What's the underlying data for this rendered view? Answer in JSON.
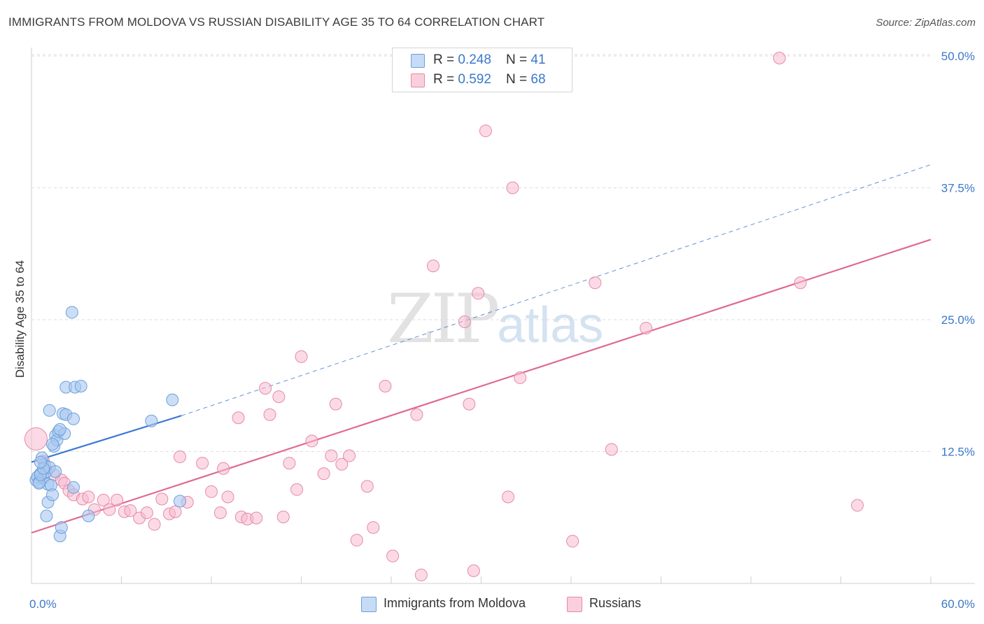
{
  "title": "IMMIGRANTS FROM MOLDOVA VS RUSSIAN DISABILITY AGE 35 TO 64 CORRELATION CHART",
  "source": "Source: ZipAtlas.com",
  "watermark": {
    "zip": "ZIP",
    "atlas": "atlas"
  },
  "legend": {
    "series1": {
      "r_label": "R = ",
      "r_value": "0.248",
      "n_label": "N = ",
      "n_value": "41"
    },
    "series2": {
      "r_label": "R = ",
      "r_value": "0.592",
      "n_label": "N = ",
      "n_value": "68"
    }
  },
  "bottom_legend": {
    "series1": "Immigrants from Moldova",
    "series2": "Russians"
  },
  "chart_data": {
    "type": "scatter",
    "title": "IMMIGRANTS FROM MOLDOVA VS RUSSIAN DISABILITY AGE 35 TO 64 CORRELATION CHART",
    "xlabel": "",
    "ylabel": "Disability Age 35 to 64",
    "xlim": [
      0,
      60
    ],
    "ylim": [
      0,
      50
    ],
    "x_tick_labels": [
      "0.0%",
      "60.0%"
    ],
    "y_tick_labels": [
      {
        "value": 12.5,
        "label": "12.5%"
      },
      {
        "value": 25.0,
        "label": "25.0%"
      },
      {
        "value": 37.5,
        "label": "37.5%"
      },
      {
        "value": 50.0,
        "label": "50.0%"
      }
    ],
    "grid": true,
    "legend_position": "top-center",
    "colors": {
      "series1_fill": "#a8c8f0",
      "series1_stroke": "#6f9fdc",
      "series1_line": "#3a78d4",
      "series2_fill": "#f7bcd0",
      "series2_stroke": "#e58aa8",
      "series2_line": "#e06a94",
      "tick_label": "#3a78c9"
    },
    "series": [
      {
        "name": "Immigrants from Moldova",
        "R": 0.248,
        "N": 41,
        "trend": {
          "solid": [
            [
              0,
              11.5
            ],
            [
              10,
              15.9
            ]
          ],
          "dashed": [
            [
              10,
              15.9
            ],
            [
              60,
              39.7
            ]
          ]
        },
        "points": [
          [
            0.3,
            9.8
          ],
          [
            0.4,
            10.1
          ],
          [
            0.5,
            9.6
          ],
          [
            0.6,
            10.4
          ],
          [
            0.8,
            10.0
          ],
          [
            0.9,
            11.2
          ],
          [
            0.7,
            11.9
          ],
          [
            1.0,
            10.6
          ],
          [
            1.1,
            9.4
          ],
          [
            1.2,
            11.0
          ],
          [
            1.0,
            6.4
          ],
          [
            1.1,
            7.7
          ],
          [
            1.3,
            9.3
          ],
          [
            1.4,
            8.4
          ],
          [
            1.5,
            13.0
          ],
          [
            1.6,
            14.0
          ],
          [
            1.7,
            13.6
          ],
          [
            1.8,
            14.4
          ],
          [
            1.2,
            16.4
          ],
          [
            1.9,
            4.5
          ],
          [
            2.0,
            5.3
          ],
          [
            2.1,
            16.1
          ],
          [
            2.2,
            14.2
          ],
          [
            2.3,
            16.0
          ],
          [
            2.3,
            18.6
          ],
          [
            2.8,
            15.6
          ],
          [
            2.9,
            18.6
          ],
          [
            3.3,
            18.7
          ],
          [
            1.6,
            10.6
          ],
          [
            2.8,
            9.1
          ],
          [
            2.7,
            25.7
          ],
          [
            3.8,
            6.4
          ],
          [
            8.0,
            15.4
          ],
          [
            9.4,
            17.4
          ],
          [
            9.9,
            7.8
          ],
          [
            0.5,
            9.5
          ],
          [
            0.6,
            10.3
          ],
          [
            1.4,
            13.2
          ],
          [
            0.8,
            10.9
          ],
          [
            1.9,
            14.6
          ],
          [
            0.6,
            11.5
          ]
        ]
      },
      {
        "name": "Russians",
        "R": 0.592,
        "N": 68,
        "trend": {
          "solid": [
            [
              0,
              4.8
            ],
            [
              60,
              32.6
            ]
          ]
        },
        "points": [
          [
            0.3,
            13.7
          ],
          [
            0.8,
            11.6
          ],
          [
            1.5,
            10.3
          ],
          [
            2.0,
            9.8
          ],
          [
            2.2,
            9.5
          ],
          [
            2.5,
            8.8
          ],
          [
            2.8,
            8.4
          ],
          [
            3.4,
            8.0
          ],
          [
            3.8,
            8.2
          ],
          [
            4.2,
            7.0
          ],
          [
            4.8,
            7.9
          ],
          [
            5.2,
            7.0
          ],
          [
            5.7,
            7.9
          ],
          [
            6.2,
            6.8
          ],
          [
            6.6,
            6.9
          ],
          [
            7.2,
            6.2
          ],
          [
            7.7,
            6.7
          ],
          [
            8.2,
            5.6
          ],
          [
            8.7,
            8.0
          ],
          [
            9.2,
            6.6
          ],
          [
            9.6,
            6.8
          ],
          [
            9.9,
            12.0
          ],
          [
            10.4,
            7.7
          ],
          [
            11.4,
            11.4
          ],
          [
            12.0,
            8.7
          ],
          [
            12.6,
            6.7
          ],
          [
            12.8,
            10.9
          ],
          [
            13.1,
            8.2
          ],
          [
            13.8,
            15.7
          ],
          [
            14.0,
            6.3
          ],
          [
            14.4,
            6.1
          ],
          [
            15.0,
            6.2
          ],
          [
            15.6,
            18.5
          ],
          [
            15.9,
            16.0
          ],
          [
            16.5,
            17.7
          ],
          [
            16.8,
            6.3
          ],
          [
            17.2,
            11.4
          ],
          [
            17.7,
            8.9
          ],
          [
            18.0,
            21.5
          ],
          [
            18.7,
            13.5
          ],
          [
            19.5,
            10.4
          ],
          [
            20.0,
            12.1
          ],
          [
            20.3,
            17.0
          ],
          [
            20.7,
            11.3
          ],
          [
            21.2,
            12.1
          ],
          [
            21.7,
            4.1
          ],
          [
            22.4,
            9.2
          ],
          [
            22.8,
            5.3
          ],
          [
            23.6,
            18.7
          ],
          [
            24.1,
            2.6
          ],
          [
            25.7,
            16.0
          ],
          [
            26.0,
            0.8
          ],
          [
            26.8,
            30.1
          ],
          [
            28.9,
            24.8
          ],
          [
            29.2,
            17.0
          ],
          [
            29.5,
            1.2
          ],
          [
            29.8,
            27.5
          ],
          [
            30.3,
            42.9
          ],
          [
            31.8,
            8.2
          ],
          [
            32.1,
            37.5
          ],
          [
            32.6,
            19.5
          ],
          [
            36.1,
            4.0
          ],
          [
            37.6,
            28.5
          ],
          [
            38.7,
            12.7
          ],
          [
            41.0,
            24.2
          ],
          [
            49.9,
            49.8
          ],
          [
            51.3,
            28.5
          ],
          [
            55.1,
            7.4
          ]
        ]
      }
    ]
  }
}
